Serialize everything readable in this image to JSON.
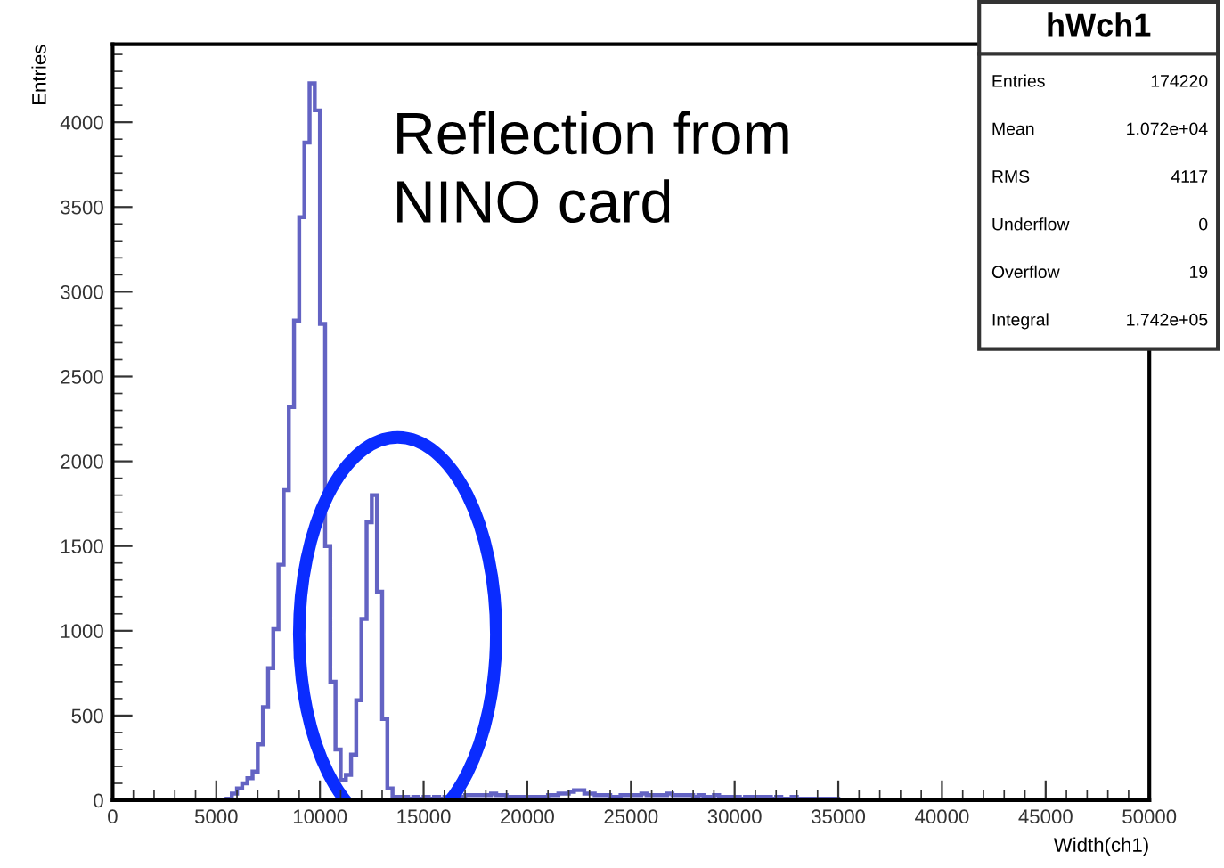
{
  "chart_data": {
    "type": "histogram",
    "title": "hWch1",
    "xlabel": "Width(ch1)",
    "ylabel": "Entries",
    "color": "#3c3cb4",
    "bins": [
      5500,
      5750,
      6000,
      6250,
      6500,
      6750,
      7000,
      7250,
      7500,
      7750,
      8000,
      8250,
      8500,
      8750,
      9000,
      9250,
      9500,
      9750,
      10000,
      10250,
      10500,
      10750,
      11000,
      11250,
      11500,
      11750,
      12000,
      12250,
      12500,
      12750,
      13000,
      13250,
      13500,
      13750,
      14000,
      14250,
      14500,
      14750,
      15000,
      15250,
      15500,
      15750,
      16000,
      16250,
      16500,
      16750,
      17000,
      17250,
      17500,
      17750,
      18000,
      18250,
      18500,
      18750,
      19000,
      19250,
      19500,
      19750,
      20000,
      20250,
      20500,
      20750,
      21000,
      21250,
      21500,
      21750,
      22000,
      22250,
      22500,
      22750,
      23000,
      23250,
      23500,
      23750,
      24000,
      24250,
      24500,
      24750,
      25000,
      25250,
      25500,
      25750,
      26000,
      26250,
      26500,
      26750,
      27000,
      27250,
      27500,
      27750,
      28000,
      28250,
      28500,
      28750,
      29000,
      29250,
      29500,
      29750,
      30000,
      30250,
      30500,
      30750,
      31000,
      31250,
      31500,
      31750,
      32000,
      32250,
      32500,
      32750,
      33000,
      33250,
      33500,
      33750,
      34000,
      34250,
      34500,
      34750,
      35000
    ],
    "values": [
      10,
      40,
      70,
      100,
      130,
      170,
      330,
      550,
      780,
      1010,
      1390,
      1830,
      2320,
      2830,
      3440,
      3880,
      4230,
      4070,
      2810,
      1500,
      700,
      300,
      120,
      150,
      270,
      590,
      1070,
      1640,
      1800,
      1230,
      480,
      70,
      20,
      20,
      20,
      10,
      20,
      10,
      20,
      10,
      20,
      10,
      20,
      20,
      20,
      20,
      30,
      30,
      30,
      30,
      30,
      40,
      30,
      30,
      20,
      20,
      20,
      20,
      20,
      20,
      20,
      20,
      30,
      30,
      40,
      40,
      50,
      60,
      60,
      40,
      40,
      30,
      30,
      30,
      20,
      20,
      30,
      30,
      30,
      30,
      40,
      30,
      30,
      30,
      30,
      40,
      30,
      30,
      30,
      30,
      20,
      30,
      20,
      20,
      30,
      20,
      20,
      20,
      20,
      10,
      20,
      20,
      20,
      20,
      20,
      10,
      20,
      10,
      10,
      20,
      10,
      10,
      10,
      10,
      10,
      10,
      10,
      10
    ],
    "xlim": [
      0,
      50000
    ],
    "ylim": [
      0,
      4460
    ],
    "xticks": [
      0,
      5000,
      10000,
      15000,
      20000,
      25000,
      30000,
      35000,
      40000,
      45000,
      50000
    ],
    "yticks": [
      0,
      500,
      1000,
      1500,
      2000,
      2500,
      3000,
      3500,
      4000
    ],
    "grid": false,
    "annotations": [
      "Reflection from\nNINO card",
      "Entries\t174220",
      "Mean\t1.072e+04",
      "RMS\t4117",
      "Underflow\t0",
      "Overflow\t19",
      "Integral\t1.742e+05"
    ]
  }
}
